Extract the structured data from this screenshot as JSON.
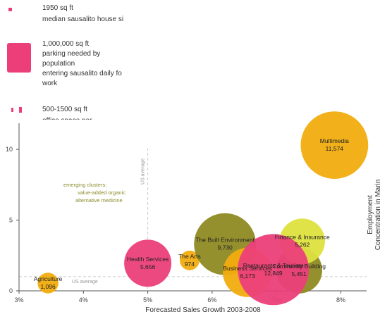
{
  "legend": [
    {
      "shape": "small-square",
      "lines": [
        "1950 sq ft",
        "median sausalito house si"
      ]
    },
    {
      "shape": "large-square",
      "lines": [
        "1,000,000 sq ft",
        "parking needed by",
        "population",
        "entering sausalito daily fo",
        "work"
      ]
    },
    {
      "shape": "two-small-squares",
      "lines": [
        "500-1500 sq ft",
        "office space per ..."
      ]
    }
  ],
  "colors": {
    "pink": "#ec3f7a",
    "gold": "#f1ad0e",
    "olive": "#8f8a23",
    "lime": "#dde23e",
    "dashed": "#cccccc"
  },
  "reference_lines": {
    "x_label": "US average",
    "x_value": 5.0,
    "y_label": "US average",
    "y_value": 1.0
  },
  "annotation": {
    "lines": [
      "emerging clusters:",
      "value-added organic",
      "alternative medicine"
    ]
  },
  "chart_data": {
    "type": "scatter",
    "xlabel": "Forecasted Sales Growth 2003-2008",
    "ylabel": "Employment Concentration in Marin",
    "xlim": [
      3,
      8.4
    ],
    "ylim": [
      0,
      11
    ],
    "x_ticks": [
      "3%",
      "4%",
      "5%",
      "6%",
      "7%",
      "8%"
    ],
    "x_tick_values": [
      3,
      4,
      5,
      6,
      7,
      8
    ],
    "y_ticks": [
      "0",
      "5",
      "10"
    ],
    "y_tick_values": [
      0,
      5,
      10
    ],
    "points": [
      {
        "name": "Agriculture",
        "value": "1,096",
        "x": 3.45,
        "y": 0.55,
        "size": 1096,
        "color": "gold"
      },
      {
        "name": "Health Services",
        "value": "5,656",
        "x": 5.0,
        "y": 1.95,
        "size": 5656,
        "color": "pink"
      },
      {
        "name": "The Arts",
        "value": "974",
        "x": 5.65,
        "y": 2.15,
        "size": 974,
        "color": "gold"
      },
      {
        "name": "The Built Environment",
        "value": "9,730",
        "x": 6.2,
        "y": 3.3,
        "size": 9730,
        "color": "olive"
      },
      {
        "name": "Business Services",
        "value": "6,173",
        "x": 6.55,
        "y": 1.3,
        "size": 6173,
        "color": "gold"
      },
      {
        "name": "Community Building",
        "value": "5,451",
        "x": 7.35,
        "y": 1.45,
        "size": 5451,
        "color": "olive"
      },
      {
        "name": "Finance & Insurance",
        "value": "5,262",
        "x": 7.4,
        "y": 3.5,
        "size": 5262,
        "color": "lime"
      },
      {
        "name": "Restaurants & Tourism",
        "value": "12,849",
        "x": 6.95,
        "y": 1.5,
        "size": 12849,
        "color": "pink"
      },
      {
        "name": "Multimedia",
        "value": "11,574",
        "x": 7.9,
        "y": 10.3,
        "size": 11574,
        "color": "gold"
      }
    ]
  }
}
